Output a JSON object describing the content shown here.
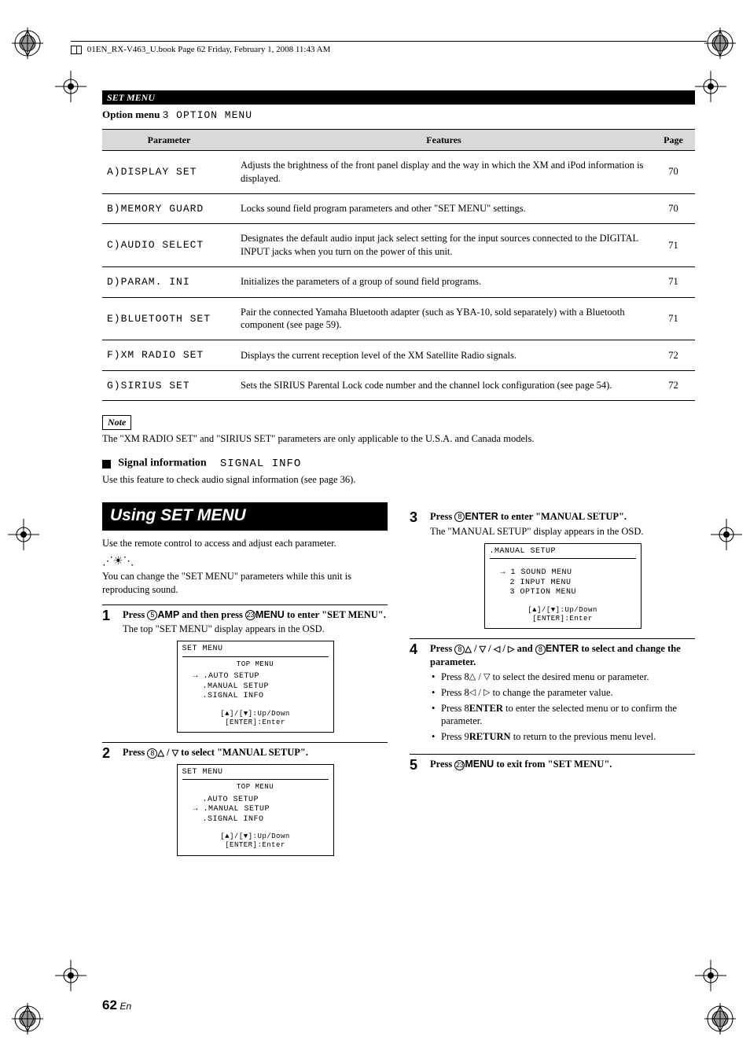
{
  "header": {
    "book_meta": "01EN_RX-V463_U.book  Page 62  Friday, February 1, 2008  11:43 AM"
  },
  "section_bar": "SET MENU",
  "option_line": {
    "bold": "Option menu",
    "seg": "3 OPTION MENU"
  },
  "table": {
    "headers": {
      "param": "Parameter",
      "feat": "Features",
      "page": "Page"
    },
    "rows": [
      {
        "param": "A)DISPLAY SET",
        "feat": "Adjusts the brightness of the front panel display and the way in which the XM and iPod information is displayed.",
        "page": "70"
      },
      {
        "param": "B)MEMORY GUARD",
        "feat": "Locks sound field program parameters and other \"SET MENU\" settings.",
        "page": "70"
      },
      {
        "param": "C)AUDIO SELECT",
        "feat": "Designates the default audio input jack select setting for the input sources connected to the DIGITAL INPUT jacks when you turn on the power of this unit.",
        "page": "71"
      },
      {
        "param": "D)PARAM. INI",
        "feat": "Initializes the parameters of a group of sound field programs.",
        "page": "71"
      },
      {
        "param": "E)BLUETOOTH SET",
        "feat": "Pair the connected Yamaha Bluetooth adapter (such as YBA-10, sold separately) with a Bluetooth component (see page 59).",
        "page": "71"
      },
      {
        "param": "F)XM RADIO SET",
        "feat": "Displays the current reception level of the XM Satellite Radio signals.",
        "page": "72"
      },
      {
        "param": "G)SIRIUS SET",
        "feat": "Sets the SIRIUS Parental Lock code number and the channel lock configuration (see page 54).",
        "page": "72"
      }
    ]
  },
  "note": {
    "label": "Note",
    "text": "The \"XM RADIO SET\" and \"SIRIUS SET\" parameters are only applicable to the U.S.A. and Canada models."
  },
  "signal": {
    "title": "Signal information",
    "seg": "SIGNAL INFO",
    "desc": "Use this feature to check audio signal information (see page 36)."
  },
  "banner": "Using SET MENU",
  "col1": {
    "intro": "Use the remote control to access and adjust each parameter.",
    "tip": "You can change the \"SET MENU\" parameters while this unit is reproducing sound.",
    "step1": {
      "head_pre": "Press ",
      "btn1_num": "5",
      "btn1": "AMP",
      "mid": " and then press ",
      "btn2_num": "23",
      "btn2": "MENU",
      "tail": " to enter \"SET MENU\".",
      "sub": "The top \"SET MENU\" display appears in the OSD."
    },
    "osd1": {
      "title": "SET MENU",
      "sub": "TOP MENU",
      "items": [
        ".AUTO SETUP",
        ".MANUAL SETUP",
        ".SIGNAL INFO"
      ],
      "hint1": "[▲]/[▼]:Up/Down",
      "hint2": "[ENTER]:Enter"
    },
    "step2": {
      "head_pre": "Press ",
      "btn_num": "8",
      "tail": " to select \"MANUAL SETUP\"."
    },
    "osd2": {
      "title": "SET MENU",
      "sub": "TOP MENU",
      "items": [
        ".AUTO SETUP",
        ".MANUAL SETUP",
        ".SIGNAL INFO"
      ],
      "hint1": "[▲]/[▼]:Up/Down",
      "hint2": "[ENTER]:Enter"
    }
  },
  "col2": {
    "step3": {
      "head_pre": "Press ",
      "btn_num": "8",
      "btn": "ENTER",
      "tail": " to enter \"MANUAL SETUP\".",
      "sub": "The \"MANUAL SETUP\" display appears in the OSD."
    },
    "osd3": {
      "title": ".MANUAL SETUP",
      "items": [
        "1 SOUND MENU",
        "2 INPUT MENU",
        "3 OPTION MENU"
      ],
      "hint1": "[▲]/[▼]:Up/Down",
      "hint2": "[ENTER]:Enter"
    },
    "step4": {
      "head_pre": "Press ",
      "btn_num": "8",
      "mid": " and ",
      "btn2_num": "8",
      "btn2": "ENTER",
      "tail": " to select and change the parameter.",
      "b1_pre": "Press ",
      "b1_num": "8",
      "b1_tail": " to select the desired menu or parameter.",
      "b2_pre": "Press ",
      "b2_num": "8",
      "b2_tail": " to change the parameter value.",
      "b3_pre": "Press ",
      "b3_num": "8",
      "b3_btn": "ENTER",
      "b3_tail": " to enter the selected menu or to confirm the parameter.",
      "b4_pre": "Press ",
      "b4_num": "9",
      "b4_btn": "RETURN",
      "b4_tail": " to return to the previous menu level."
    },
    "step5": {
      "head_pre": "Press ",
      "btn_num": "23",
      "btn": "MENU",
      "tail": " to exit from \"SET MENU\"."
    }
  },
  "page_num": {
    "num": "62",
    "suffix": "En"
  },
  "colors": {
    "black": "#000000",
    "white": "#ffffff",
    "grey": "#d9d9d9"
  }
}
